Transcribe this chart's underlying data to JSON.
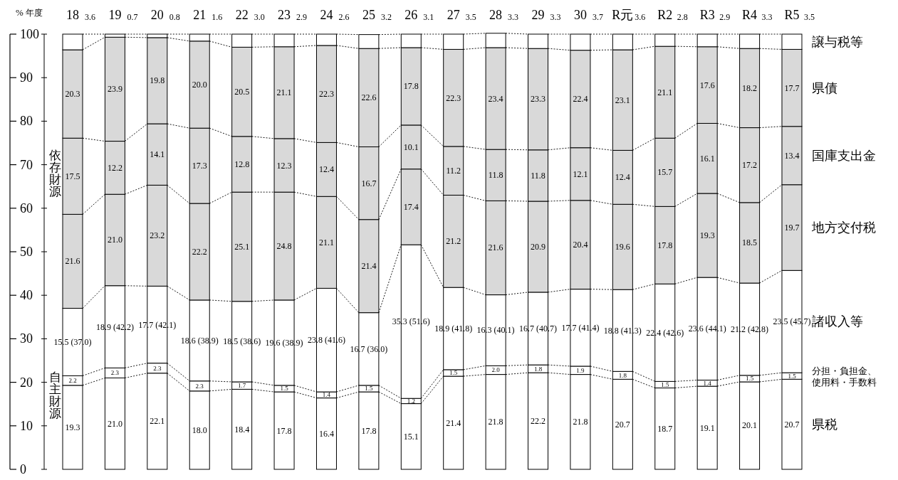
{
  "chart_data": {
    "type": "bar",
    "stacked": true,
    "xlabel": "年度",
    "ylabel": "%",
    "annotations": [
      "依存財源",
      "自主財源"
    ],
    "categories": [
      "18",
      "19",
      "20",
      "21",
      "22",
      "23",
      "24",
      "25",
      "26",
      "27",
      "28",
      "29",
      "30",
      "R元",
      "R2",
      "R3",
      "R4",
      "R5"
    ],
    "ylim": [
      0,
      100
    ],
    "yticks": [
      0,
      10,
      20,
      30,
      40,
      50,
      60,
      70,
      80,
      90,
      100
    ],
    "line_style": "dotted",
    "series": [
      {
        "name": "県税",
        "color": "#ffffff",
        "values": [
          19.3,
          21.0,
          22.1,
          18.0,
          18.4,
          17.8,
          16.4,
          17.8,
          15.1,
          21.4,
          21.8,
          22.2,
          21.8,
          20.7,
          18.7,
          19.1,
          20.1,
          20.7
        ],
        "value_labels": [
          "19.3",
          "21.0",
          "22.1",
          "18.0",
          "18.4",
          "17.8",
          "16.4",
          "17.8",
          "15.1",
          "21.4",
          "21.8",
          "22.2",
          "21.8",
          "20.7",
          "18.7",
          "19.1",
          "20.1",
          "20.7"
        ]
      },
      {
        "name": "分担・負担金、使用料・手数料",
        "color": "#ffffff",
        "values": [
          2.2,
          2.3,
          2.3,
          2.3,
          1.7,
          1.5,
          1.4,
          1.5,
          1.2,
          1.5,
          2.0,
          1.8,
          1.9,
          1.8,
          1.5,
          1.4,
          1.5,
          1.5
        ],
        "value_labels": [
          "2.2",
          "2.3",
          "2.3",
          "2.3",
          "1.7",
          "1.5",
          "1.4",
          "1.5",
          "1.2",
          "1.5",
          "2.0",
          "1.8",
          "1.9",
          "1.8",
          "1.5",
          "1.4",
          "1.5",
          "1.5"
        ]
      },
      {
        "name": "諸収入等",
        "color": "#ffffff",
        "values": [
          15.5,
          18.9,
          17.7,
          18.6,
          18.5,
          19.6,
          23.8,
          16.7,
          35.3,
          18.9,
          16.3,
          16.7,
          17.7,
          18.8,
          22.4,
          23.6,
          21.2,
          23.5
        ],
        "value_labels": [
          "15.5 (37.0)",
          "18.9 (42.2)",
          "17.7 (42.1)",
          "18.6 (38.9)",
          "18.5 (38.6)",
          "19.6 (38.9)",
          "23.8 (41.6)",
          "16.7 (36.0)",
          "35.3 (51.6)",
          "18.9 (41.8)",
          "16.3 (40.1)",
          "16.7 (40.7)",
          "17.7 (41.4)",
          "18.8 (41.3)",
          "22.4 (42.6)",
          "23.6 (44.1)",
          "21.2 (42.8)",
          "23.5 (45.7)"
        ]
      },
      {
        "name": "地方交付税",
        "color": "#d9d9d9",
        "values": [
          21.6,
          21.0,
          23.2,
          22.2,
          25.1,
          24.8,
          21.1,
          21.4,
          17.4,
          21.2,
          21.6,
          20.9,
          20.4,
          19.6,
          17.8,
          19.3,
          18.5,
          19.7
        ],
        "value_labels": [
          "21.6",
          "21.0",
          "23.2",
          "22.2",
          "25.1",
          "24.8",
          "21.1",
          "21.4",
          "17.4",
          "21.2",
          "21.6",
          "20.9",
          "20.4",
          "19.6",
          "17.8",
          "19.3",
          "18.5",
          "19.7"
        ]
      },
      {
        "name": "国庫支出金",
        "color": "#d9d9d9",
        "values": [
          17.5,
          12.2,
          14.1,
          17.3,
          12.8,
          12.3,
          12.4,
          16.7,
          10.1,
          11.2,
          11.8,
          11.8,
          12.1,
          12.4,
          15.7,
          16.1,
          17.2,
          13.4
        ],
        "value_labels": [
          "17.5",
          "12.2",
          "14.1",
          "17.3",
          "12.8",
          "12.3",
          "12.4",
          "16.7",
          "10.1",
          "11.2",
          "11.8",
          "11.8",
          "12.1",
          "12.4",
          "15.7",
          "16.1",
          "17.2",
          "13.4"
        ]
      },
      {
        "name": "県債",
        "color": "#d9d9d9",
        "values": [
          20.3,
          23.9,
          19.8,
          20.0,
          20.5,
          21.1,
          22.3,
          22.6,
          17.8,
          22.3,
          23.4,
          23.3,
          22.4,
          23.1,
          21.1,
          17.6,
          18.2,
          17.7
        ],
        "value_labels": [
          "20.3",
          "23.9",
          "19.8",
          "20.0",
          "20.5",
          "21.1",
          "22.3",
          "22.6",
          "17.8",
          "22.3",
          "23.4",
          "23.3",
          "22.4",
          "23.1",
          "21.1",
          "17.6",
          "18.2",
          "17.7"
        ]
      },
      {
        "name": "譲与税等",
        "color": "#ffffff",
        "values": [
          3.6,
          0.7,
          0.8,
          1.6,
          3.0,
          2.9,
          2.6,
          3.2,
          3.1,
          3.5,
          3.3,
          3.3,
          3.7,
          3.6,
          2.8,
          2.9,
          3.3,
          3.5
        ],
        "value_labels": [
          "3.6",
          "0.7",
          "0.8",
          "1.6",
          "3.0",
          "2.9",
          "2.6",
          "3.2",
          "3.1",
          "3.5",
          "3.3",
          "3.3",
          "3.7",
          "3.6",
          "2.8",
          "2.9",
          "3.3",
          "3.5"
        ]
      }
    ]
  }
}
